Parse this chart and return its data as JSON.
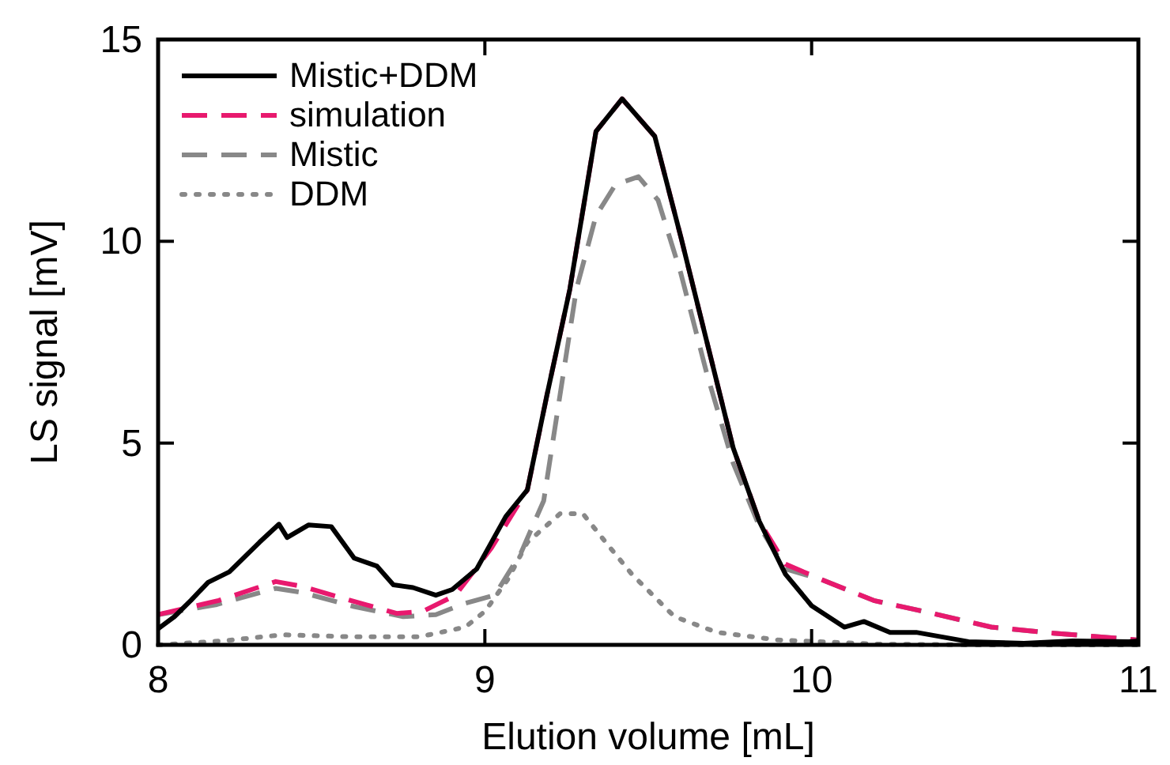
{
  "chart_data": {
    "type": "line",
    "xlabel": "Elution volume [mL]",
    "ylabel": "LS signal [mV]",
    "xlim": [
      8,
      11
    ],
    "ylim": [
      0,
      15
    ],
    "xticks": [
      8,
      9,
      10,
      11
    ],
    "yticks": [
      0,
      5,
      10,
      15
    ],
    "grid": false,
    "legend": "top left",
    "series": [
      {
        "name": "Mistic+DDM",
        "color": "#000000",
        "line_style": "solid",
        "x": [
          8.0,
          8.05,
          8.1,
          8.153,
          8.218,
          8.31,
          8.37,
          8.395,
          8.46,
          8.53,
          8.6,
          8.67,
          8.72,
          8.78,
          8.85,
          8.9,
          8.975,
          9.064,
          9.13,
          9.19,
          9.26,
          9.34,
          9.42,
          9.52,
          9.6,
          9.68,
          9.76,
          9.84,
          9.92,
          10.0,
          10.1,
          10.16,
          10.24,
          10.32,
          10.48,
          10.65,
          10.8,
          10.97,
          11.0
        ],
        "values": [
          0.4,
          0.7,
          1.1,
          1.55,
          1.81,
          2.54,
          2.99,
          2.66,
          2.97,
          2.93,
          2.15,
          1.95,
          1.49,
          1.42,
          1.23,
          1.37,
          1.88,
          3.18,
          3.84,
          6.19,
          8.81,
          12.72,
          13.53,
          12.6,
          10.1,
          7.49,
          4.88,
          3.06,
          1.75,
          0.97,
          0.44,
          0.58,
          0.31,
          0.31,
          0.08,
          0.04,
          0.1,
          0.08,
          0.1
        ]
      },
      {
        "name": "simulation",
        "color": "#e8196e",
        "line_style": "dashed",
        "x": [
          8.0,
          8.185,
          8.36,
          8.44,
          8.59,
          8.73,
          8.81,
          8.91,
          9.02,
          9.13,
          9.19,
          9.26,
          9.34,
          9.42,
          9.52,
          9.6,
          9.68,
          9.76,
          9.84,
          9.92,
          10.03,
          10.19,
          10.37,
          10.55,
          10.74,
          10.94,
          11.0
        ],
        "values": [
          0.75,
          1.1,
          1.57,
          1.45,
          1.1,
          0.78,
          0.83,
          1.23,
          2.4,
          3.84,
          6.19,
          8.81,
          12.72,
          13.53,
          12.6,
          10.1,
          7.49,
          4.88,
          3.06,
          2.0,
          1.62,
          1.1,
          0.78,
          0.44,
          0.29,
          0.16,
          0.12
        ]
      },
      {
        "name": "Mistic",
        "color": "#888888",
        "line_style": "dashed",
        "x": [
          8.0,
          8.18,
          8.36,
          8.44,
          8.6,
          8.75,
          8.85,
          8.94,
          9.03,
          9.11,
          9.18,
          9.23,
          9.28,
          9.34,
          9.4,
          9.47,
          9.53,
          9.6,
          9.68,
          9.76,
          9.84,
          9.92,
          10.03,
          10.19,
          10.37,
          10.55,
          10.74,
          10.94,
          11.0
        ],
        "values": [
          0.75,
          1.0,
          1.4,
          1.3,
          0.95,
          0.7,
          0.75,
          1.03,
          1.23,
          2.27,
          3.57,
          6.19,
          8.81,
          10.63,
          11.41,
          11.6,
          11.02,
          9.2,
          6.7,
          4.5,
          2.94,
          1.88,
          1.62,
          1.1,
          0.78,
          0.44,
          0.29,
          0.16,
          0.12
        ]
      },
      {
        "name": "DDM",
        "color": "#888888",
        "line_style": "dotted",
        "x": [
          8.0,
          8.2,
          8.38,
          8.6,
          8.8,
          8.94,
          9.0,
          9.07,
          9.13,
          9.23,
          9.3,
          9.37,
          9.45,
          9.58,
          9.71,
          9.9,
          10.2,
          10.5,
          11.0
        ],
        "values": [
          0.0,
          0.1,
          0.25,
          0.2,
          0.2,
          0.44,
          0.83,
          1.62,
          2.54,
          3.25,
          3.25,
          2.54,
          1.75,
          0.7,
          0.31,
          0.12,
          0.02,
          0.0,
          0.0
        ]
      }
    ]
  }
}
